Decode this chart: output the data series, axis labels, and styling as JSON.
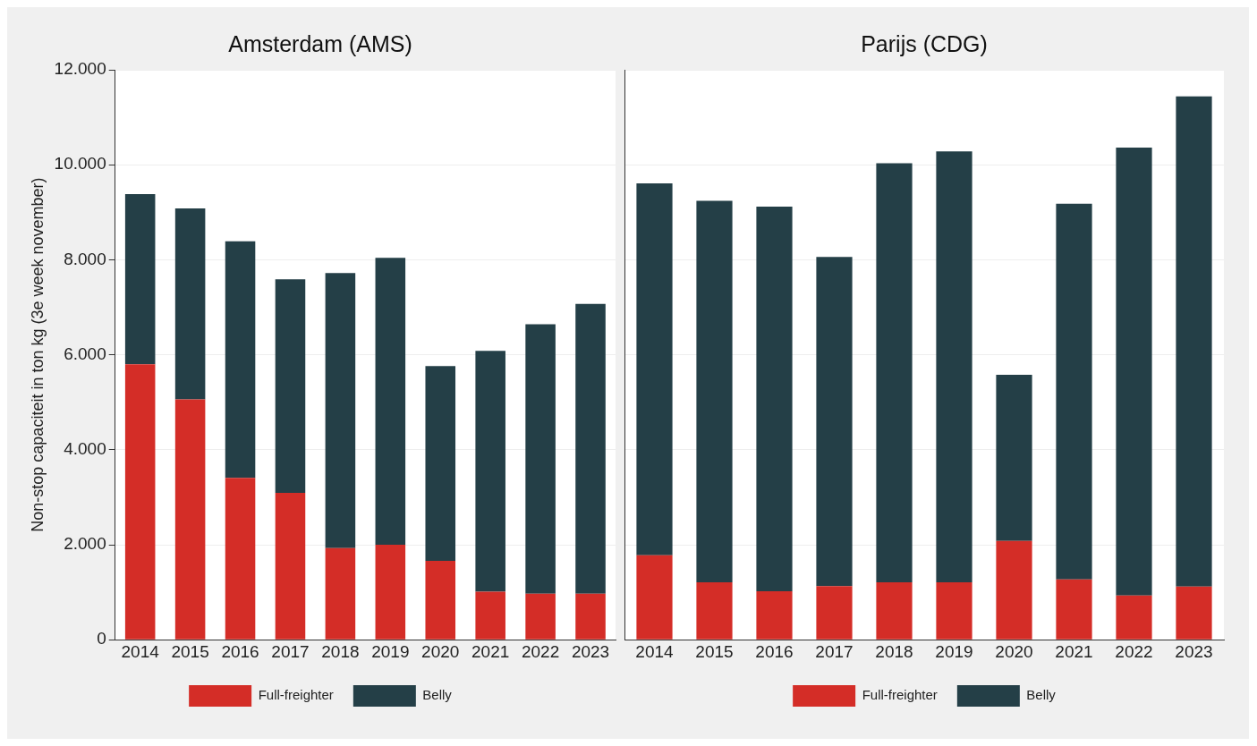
{
  "chart_data": [
    {
      "type": "bar",
      "title": "Amsterdam (AMS)",
      "ylabel": "Non-stop capaciteit in ton kg (3e week november)",
      "categories": [
        "2014",
        "2015",
        "2016",
        "2017",
        "2018",
        "2019",
        "2020",
        "2021",
        "2022",
        "2023"
      ],
      "stacked": true,
      "series": [
        {
          "name": "Full-freighter",
          "color": "#d42d27",
          "values": [
            5800,
            5060,
            3410,
            3090,
            1930,
            2000,
            1660,
            1010,
            970,
            970
          ]
        },
        {
          "name": "Belly",
          "color": "#243f47",
          "values": [
            3580,
            4020,
            4980,
            4500,
            5790,
            6040,
            4100,
            5070,
            5670,
            6100
          ]
        }
      ],
      "ylim": [
        0,
        12000
      ],
      "yticks": [
        {
          "value": 0,
          "label": "0"
        },
        {
          "value": 2000,
          "label": "2.000"
        },
        {
          "value": 4000,
          "label": "4.000"
        },
        {
          "value": 6000,
          "label": "6.000"
        },
        {
          "value": 8000,
          "label": "8.000"
        },
        {
          "value": 10000,
          "label": "10.000"
        },
        {
          "value": 12000,
          "label": "12.000"
        }
      ],
      "grid": "y",
      "legend": "bottom"
    },
    {
      "type": "bar",
      "title": "Parijs (CDG)",
      "categories": [
        "2014",
        "2015",
        "2016",
        "2017",
        "2018",
        "2019",
        "2020",
        "2021",
        "2022",
        "2023"
      ],
      "stacked": true,
      "series": [
        {
          "name": "Full-freighter",
          "color": "#d42d27",
          "values": [
            1780,
            1210,
            1020,
            1130,
            1210,
            1210,
            2080,
            1270,
            930,
            1120
          ]
        },
        {
          "name": "Belly",
          "color": "#243f47",
          "values": [
            7830,
            8030,
            8100,
            6930,
            8820,
            9070,
            3500,
            7910,
            9430,
            10320
          ]
        }
      ],
      "ylim": [
        0,
        12000
      ],
      "yticks": [
        0,
        2000,
        4000,
        6000,
        8000,
        10000,
        12000
      ],
      "grid": "y",
      "legend": "bottom",
      "tick_labels": "x"
    }
  ]
}
